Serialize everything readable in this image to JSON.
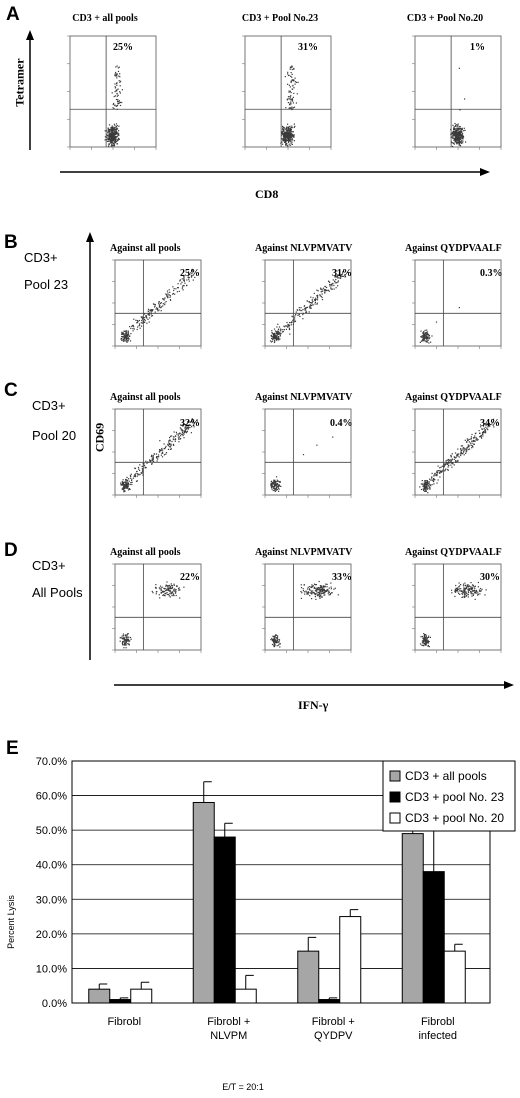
{
  "panelA": {
    "letter": "A",
    "y_axis_label": "Tetramer",
    "x_axis_label": "CD8",
    "plots": [
      {
        "title": "CD3 + all pools",
        "percent": "25%"
      },
      {
        "title": "CD3 + Pool No.23",
        "percent": "31%"
      },
      {
        "title": "CD3 + Pool No.20",
        "percent": "1%"
      }
    ]
  },
  "panelsBCD": {
    "y_axis_label": "CD69",
    "x_axis_label": "IFN-γ",
    "rows": [
      {
        "letter": "B",
        "label_line1": "CD3+",
        "label_line2": "Pool 23",
        "plots": [
          {
            "title": "Against all pools",
            "percent": "25%"
          },
          {
            "title": "Against NLVPMVATV",
            "percent": "31%"
          },
          {
            "title": "Against QYDPVAALF",
            "percent": "0.3%"
          }
        ]
      },
      {
        "letter": "C",
        "label_line1": "CD3+",
        "label_line2": "Pool 20",
        "plots": [
          {
            "title": "Against all pools",
            "percent": "32%"
          },
          {
            "title": "Against NLVPMVATV",
            "percent": "0.4%"
          },
          {
            "title": "Against QYDPVAALF",
            "percent": "34%"
          }
        ]
      },
      {
        "letter": "D",
        "label_line1": "CD3+",
        "label_line2": "All Pools",
        "plots": [
          {
            "title": "Against all pools",
            "percent": "22%"
          },
          {
            "title": "Against NLVPMVATV",
            "percent": "33%"
          },
          {
            "title": "Against QYDPVAALF",
            "percent": "30%"
          }
        ]
      }
    ]
  },
  "panelE": {
    "letter": "E",
    "colors": {
      "gray": "#a6a6a6",
      "black": "#000000",
      "white": "#ffffff"
    }
  },
  "chart_data": {
    "type": "bar",
    "title": "",
    "xlabel": "E/T = 20:1",
    "ylabel": "Percent Lysis",
    "ylim": [
      0,
      70
    ],
    "yticks": [
      "0.0%",
      "10.0%",
      "20.0%",
      "30.0%",
      "40.0%",
      "50.0%",
      "60.0%",
      "70.0%"
    ],
    "grid": true,
    "legend_position": "top-right",
    "categories": [
      [
        "Fibrobl"
      ],
      [
        "Fibrobl +",
        "NLVPM"
      ],
      [
        "Fibrobl +",
        "QYDPV"
      ],
      [
        "Fibrobl",
        "infected"
      ]
    ],
    "series": [
      {
        "name": "CD3 + all pools",
        "color": "#a6a6a6",
        "values": [
          4,
          58,
          15,
          49
        ],
        "errors": [
          1.5,
          6,
          4,
          19
        ]
      },
      {
        "name": "CD3 + pool No. 23",
        "color": "#000000",
        "values": [
          1,
          48,
          1,
          38
        ],
        "errors": [
          0.5,
          4,
          0.5,
          12
        ]
      },
      {
        "name": "CD3 + pool No. 20",
        "color": "#ffffff",
        "values": [
          4,
          4,
          25,
          15
        ],
        "errors": [
          2,
          4,
          2,
          2
        ]
      }
    ]
  }
}
